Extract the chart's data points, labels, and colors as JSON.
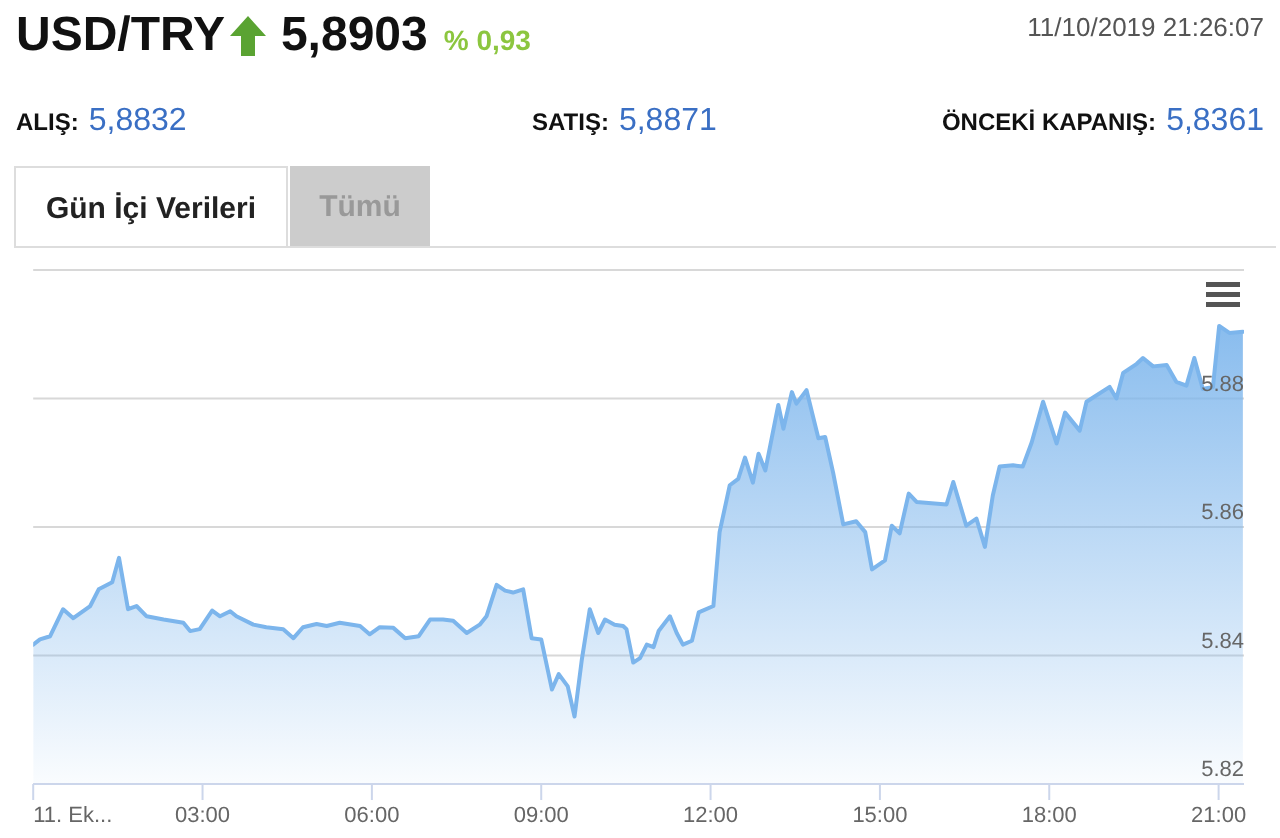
{
  "chart_data": {
    "type": "area",
    "title": "USD/TRY",
    "annotations": [
      "5,8903",
      "% 0,93",
      "11/10/2019 21:26:07",
      "ALIŞ:",
      "5,8832",
      "SATIŞ:",
      "5,8871",
      "ÖNCEKİ KAPANIŞ:",
      "5,8361",
      "Gün İçi Verileri",
      "Tümü"
    ],
    "x": [
      0,
      0.12,
      0.3,
      0.53,
      0.71,
      1.01,
      1.16,
      1.4,
      1.52,
      1.68,
      1.83,
      2.01,
      2.31,
      2.66,
      2.78,
      2.95,
      3.17,
      3.31,
      3.49,
      3.6,
      3.9,
      4.13,
      4.43,
      4.61,
      4.78,
      5.02,
      5.2,
      5.43,
      5.79,
      5.96,
      6.14,
      6.38,
      6.59,
      6.83,
      7.03,
      7.26,
      7.44,
      7.68,
      7.91,
      8.03,
      8.21,
      8.36,
      8.5,
      8.68,
      8.83,
      9,
      9.19,
      9.31,
      9.47,
      9.59,
      9.72,
      9.86,
      10.01,
      10.13,
      10.3,
      10.45,
      10.51,
      10.63,
      10.75,
      10.87,
      10.99,
      11.08,
      11.28,
      11.4,
      11.51,
      11.67,
      11.79,
      12.05,
      12.16,
      12.34,
      12.49,
      12.61,
      12.75,
      12.85,
      12.97,
      13.2,
      13.29,
      13.44,
      13.52,
      13.7,
      13.91,
      14.03,
      14.17,
      14.35,
      14.58,
      14.74,
      14.86,
      15.09,
      15.21,
      15.35,
      15.51,
      15.65,
      16.18,
      16.3,
      16.53,
      16.71,
      16.86,
      17,
      17.12,
      17.36,
      17.53,
      17.69,
      17.89,
      18.13,
      18.28,
      18.54,
      18.66,
      19.07,
      19.19,
      19.31,
      19.55,
      19.66,
      19.84,
      20.08,
      20.25,
      20.43,
      20.57,
      20.72,
      20.9,
      21.01,
      21.19,
      21.43
    ],
    "series": [
      {
        "color": "#7cb5ec",
        "values": [
          5.8417,
          5.8425,
          5.843,
          5.8472,
          5.8458,
          5.8477,
          5.8503,
          5.8514,
          5.8552,
          5.8472,
          5.8477,
          5.8461,
          5.8456,
          5.8451,
          5.8438,
          5.8441,
          5.847,
          5.8461,
          5.8469,
          5.8461,
          5.8448,
          5.8444,
          5.8441,
          5.8427,
          5.8444,
          5.8449,
          5.8446,
          5.8451,
          5.8446,
          5.8433,
          5.8444,
          5.8443,
          5.8427,
          5.843,
          5.8456,
          5.8456,
          5.8454,
          5.8435,
          5.8448,
          5.8461,
          5.851,
          5.8501,
          5.8498,
          5.8503,
          5.8427,
          5.8425,
          5.8347,
          5.8371,
          5.8352,
          5.8305,
          5.8394,
          5.8472,
          5.8435,
          5.8456,
          5.8448,
          5.8446,
          5.8441,
          5.8389,
          5.8396,
          5.8417,
          5.8413,
          5.8438,
          5.8461,
          5.8435,
          5.8417,
          5.8423,
          5.8467,
          5.8477,
          5.8592,
          5.8665,
          5.8675,
          5.8708,
          5.8669,
          5.8714,
          5.8688,
          5.879,
          5.8753,
          5.881,
          5.8792,
          5.8813,
          5.8738,
          5.874,
          5.8685,
          5.8604,
          5.8609,
          5.8592,
          5.8534,
          5.8548,
          5.8602,
          5.859,
          5.8652,
          5.8639,
          5.8635,
          5.867,
          5.8602,
          5.8613,
          5.8569,
          5.8649,
          5.8694,
          5.8696,
          5.8694,
          5.8732,
          5.8795,
          5.873,
          5.8778,
          5.875,
          5.8795,
          5.8818,
          5.88,
          5.884,
          5.8854,
          5.8863,
          5.885,
          5.8852,
          5.8826,
          5.882,
          5.8863,
          5.8815,
          5.8818,
          5.8913,
          5.8902,
          5.8904
        ]
      }
    ],
    "xlim": [
      0,
      21.45
    ],
    "xticks": [
      {
        "value": 0,
        "label": "11. Ek..."
      },
      {
        "value": 3,
        "label": "03:00"
      },
      {
        "value": 6,
        "label": "06:00"
      },
      {
        "value": 9,
        "label": "09:00"
      },
      {
        "value": 12,
        "label": "12:00"
      },
      {
        "value": 15,
        "label": "15:00"
      },
      {
        "value": 18,
        "label": "18:00"
      },
      {
        "value": 21,
        "label": "21:00"
      }
    ],
    "ylim": [
      5.82,
      5.9
    ],
    "yticks": [
      5.82,
      5.84,
      5.86,
      5.88,
      {
        "value": 5.9,
        "label": null
      }
    ],
    "grid": "y"
  }
}
